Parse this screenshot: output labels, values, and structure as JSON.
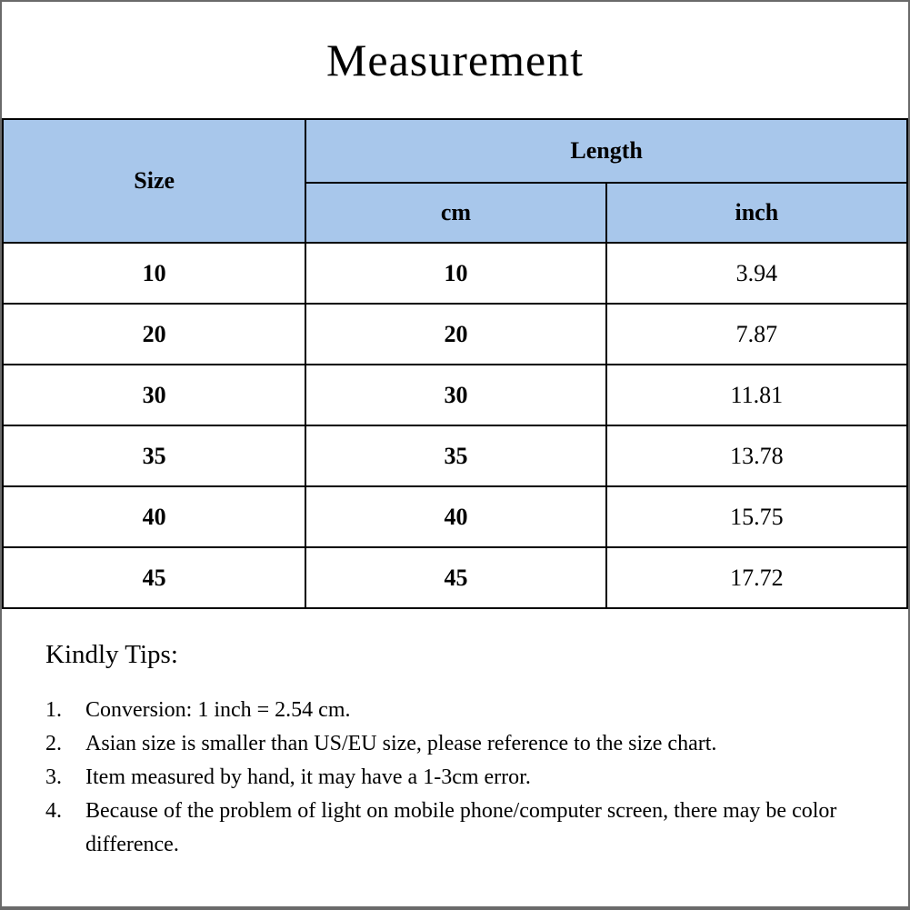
{
  "title": "Measurement",
  "table": {
    "size_header": "Size",
    "length_header": "Length",
    "sub_headers": {
      "cm": "cm",
      "inch": "inch"
    },
    "rows": [
      {
        "size": "10",
        "cm": "10",
        "inch": "3.94"
      },
      {
        "size": "20",
        "cm": "20",
        "inch": "7.87"
      },
      {
        "size": "30",
        "cm": "30",
        "inch": "11.81"
      },
      {
        "size": "35",
        "cm": "35",
        "inch": "13.78"
      },
      {
        "size": "40",
        "cm": "40",
        "inch": "15.75"
      },
      {
        "size": "45",
        "cm": "45",
        "inch": "17.72"
      }
    ]
  },
  "tips": {
    "heading": "Kindly Tips:",
    "items": [
      {
        "num": "1.",
        "text": "Conversion: 1 inch = 2.54 cm."
      },
      {
        "num": "2.",
        "text": "Asian size is smaller than US/EU size, please reference to the size chart."
      },
      {
        "num": "3.",
        "text": "Item measured by hand, it may have a 1-3cm error."
      },
      {
        "num": "4.",
        "text": "Because of the problem of light on mobile phone/computer screen, there may be color difference."
      }
    ]
  },
  "colors": {
    "header_bg": "#a8c7eb",
    "table_border": "#000000",
    "outer_border": "#6a6a6a",
    "text": "#000000"
  }
}
